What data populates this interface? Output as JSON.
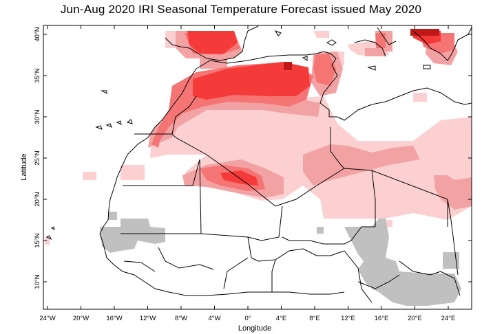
{
  "title": "Jun-Aug 2020 IRI Seasonal Temperature Forecast issued May 2020",
  "axes": {
    "xlabel": "Longitude",
    "ylabel": "Latitude",
    "x_ticks": [
      "24°W",
      "20°W",
      "16°W",
      "12°W",
      "8°W",
      "4°W",
      "0°",
      "4°E",
      "8°E",
      "12°E",
      "16°E",
      "20°E",
      "24°E"
    ],
    "y_ticks": [
      "10°N",
      "15°N",
      "20°N",
      "25°N",
      "30°N",
      "35°N",
      "40°N"
    ]
  },
  "colors": {
    "light_pink": "#fcd0d0",
    "medium_pink": "#f2a2a2",
    "salmon": "#f57575",
    "red": "#f53a3a",
    "dark_red": "#c01818",
    "grey": "#c0c0c0"
  }
}
